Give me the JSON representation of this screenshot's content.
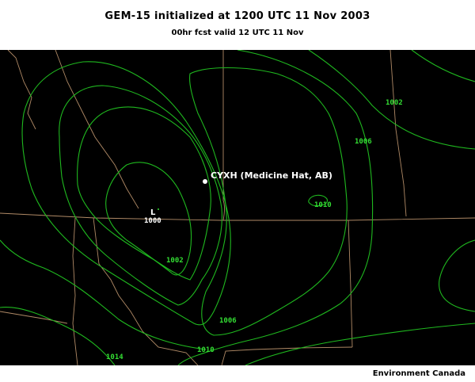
{
  "header": {
    "title": "GEM-15 initialized at 1200 UTC  11 Nov 2003",
    "subtitle": "00hr fcst valid 12 UTC 11 Nov"
  },
  "map": {
    "station": {
      "label": "CYXH (Medicine Hat, AB)"
    },
    "low_center": {
      "symbol": "L",
      "value": "1000"
    },
    "isobar_labels": [
      "1002",
      "1006",
      "1010",
      "1002",
      "1006",
      "1010",
      "1014"
    ],
    "colors": {
      "background": "#000000",
      "isobar": "#1fb81f",
      "border": "#b08a66",
      "label": "#33dd33"
    }
  },
  "footer": {
    "credit": "Environment Canada"
  }
}
